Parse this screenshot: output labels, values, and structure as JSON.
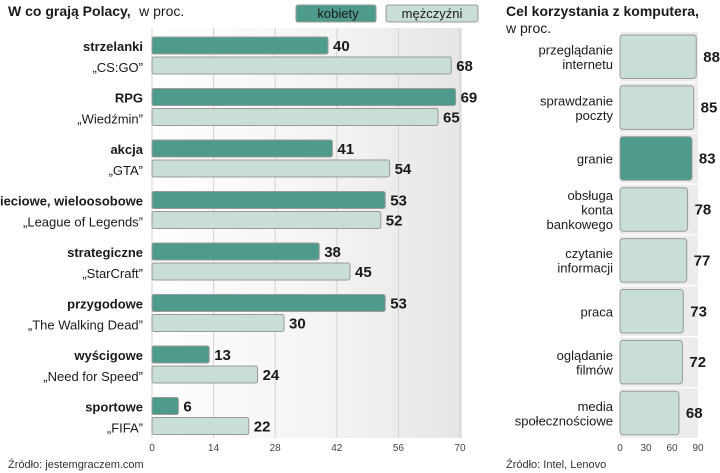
{
  "colors": {
    "women": "#4e9a8b",
    "men": "#c8ded6",
    "bar_stroke": "#9a9a9a",
    "panel_bg": "#ececec"
  },
  "chart_data": [
    {
      "type": "bar",
      "orientation": "horizontal",
      "title": "W co grają Polacy,",
      "unit": "w proc.",
      "legend": [
        {
          "name": "kobiety",
          "color_key": "women"
        },
        {
          "name": "mężczyźni",
          "color_key": "men"
        }
      ],
      "categories": [
        {
          "name": "strzelanki",
          "example": "„CS:GO”"
        },
        {
          "name": "RPG",
          "example": "„Wiedźmin”"
        },
        {
          "name": "akcja",
          "example": "„GTA”"
        },
        {
          "name": "sieciowe, wieloosobowe",
          "example": "„League of Legends”"
        },
        {
          "name": "strategiczne",
          "example": "„StarCraft”"
        },
        {
          "name": "przygodowe",
          "example": "„The Walking Dead”"
        },
        {
          "name": "wyścigowe",
          "example": "„Need for Speed”"
        },
        {
          "name": "sportowe",
          "example": "„FIFA”"
        }
      ],
      "series": [
        {
          "name": "kobiety",
          "values": [
            40,
            69,
            41,
            53,
            38,
            53,
            13,
            6
          ]
        },
        {
          "name": "mężczyźni",
          "values": [
            68,
            65,
            54,
            52,
            45,
            30,
            24,
            22
          ]
        }
      ],
      "xlim": [
        0,
        70
      ],
      "xticks": [
        0,
        14,
        28,
        42,
        56,
        70
      ],
      "source": "Źródło: jestemgraczem.com"
    },
    {
      "type": "bar",
      "orientation": "horizontal",
      "title": "Cel korzystania z komputera,",
      "unit": "w proc.",
      "categories": [
        "przeglądanie\ninternetu",
        "sprawdzanie\npoczty",
        "granie",
        "obsługa\nkonta\nbankowego",
        "czytanie\ninformacji",
        "praca",
        "oglądanie\nfilmów",
        "media\nspołecznościowe"
      ],
      "values": [
        88,
        85,
        83,
        78,
        77,
        73,
        72,
        68
      ],
      "highlight": "granie",
      "xlim": [
        0,
        90
      ],
      "xticks": [
        0,
        30,
        60,
        90
      ],
      "source": "Źródło: Intel, Lenovo"
    }
  ]
}
